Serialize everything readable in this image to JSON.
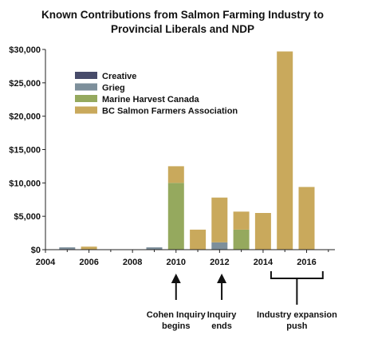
{
  "chart_data": {
    "type": "bar",
    "stacked": true,
    "title": [
      "Known Contributions from Salmon Farming Industry to",
      "Provincial Liberals and NDP"
    ],
    "xlabel": "",
    "ylabel": "",
    "x": [
      2005,
      2006,
      2007,
      2008,
      2009,
      2010,
      2011,
      2012,
      2013,
      2014,
      2015,
      2016
    ],
    "xlim": [
      2004,
      2017.3
    ],
    "ylim": [
      0,
      30000
    ],
    "xticks": [
      "2004",
      "2006",
      "2008",
      "2010",
      "2012",
      "2014",
      "2016"
    ],
    "xtick_values": [
      2004,
      2006,
      2008,
      2010,
      2012,
      2014,
      2016
    ],
    "yticks": [
      "$0",
      "$5,000",
      "$10,000",
      "$15,000",
      "$20,000",
      "$25,000",
      "$30,000"
    ],
    "ytick_values": [
      0,
      5000,
      10000,
      15000,
      20000,
      25000,
      30000
    ],
    "grid": false,
    "legend_position": "top-left",
    "series": [
      {
        "name": "Creative",
        "color": "#474b6a",
        "values": [
          100,
          0,
          0,
          0,
          0,
          0,
          0,
          0,
          0,
          0,
          0,
          0
        ]
      },
      {
        "name": "Grieg",
        "color": "#7d8f9b",
        "values": [
          250,
          0,
          0,
          0,
          350,
          0,
          0,
          1100,
          0,
          0,
          0,
          0
        ]
      },
      {
        "name": "Marine Harvest Canada",
        "color": "#95a95e",
        "values": [
          0,
          0,
          0,
          0,
          0,
          10000,
          0,
          0,
          3000,
          0,
          0,
          0
        ]
      },
      {
        "name": "BC Salmon Farmers Association",
        "color": "#c9a95c",
        "values": [
          0,
          450,
          0,
          0,
          0,
          2500,
          3000,
          6700,
          2700,
          5500,
          29700,
          9400
        ]
      }
    ],
    "annotations": [
      {
        "lines": [
          "Cohen Inquiry",
          "begins"
        ],
        "year": 2010,
        "type": "arrow"
      },
      {
        "lines": [
          "Inquiry",
          "ends"
        ],
        "year": 2012.1,
        "type": "arrow"
      },
      {
        "lines": [
          "Industry expansion",
          "push"
        ],
        "range": [
          2014,
          2017
        ],
        "type": "bracket"
      }
    ]
  }
}
